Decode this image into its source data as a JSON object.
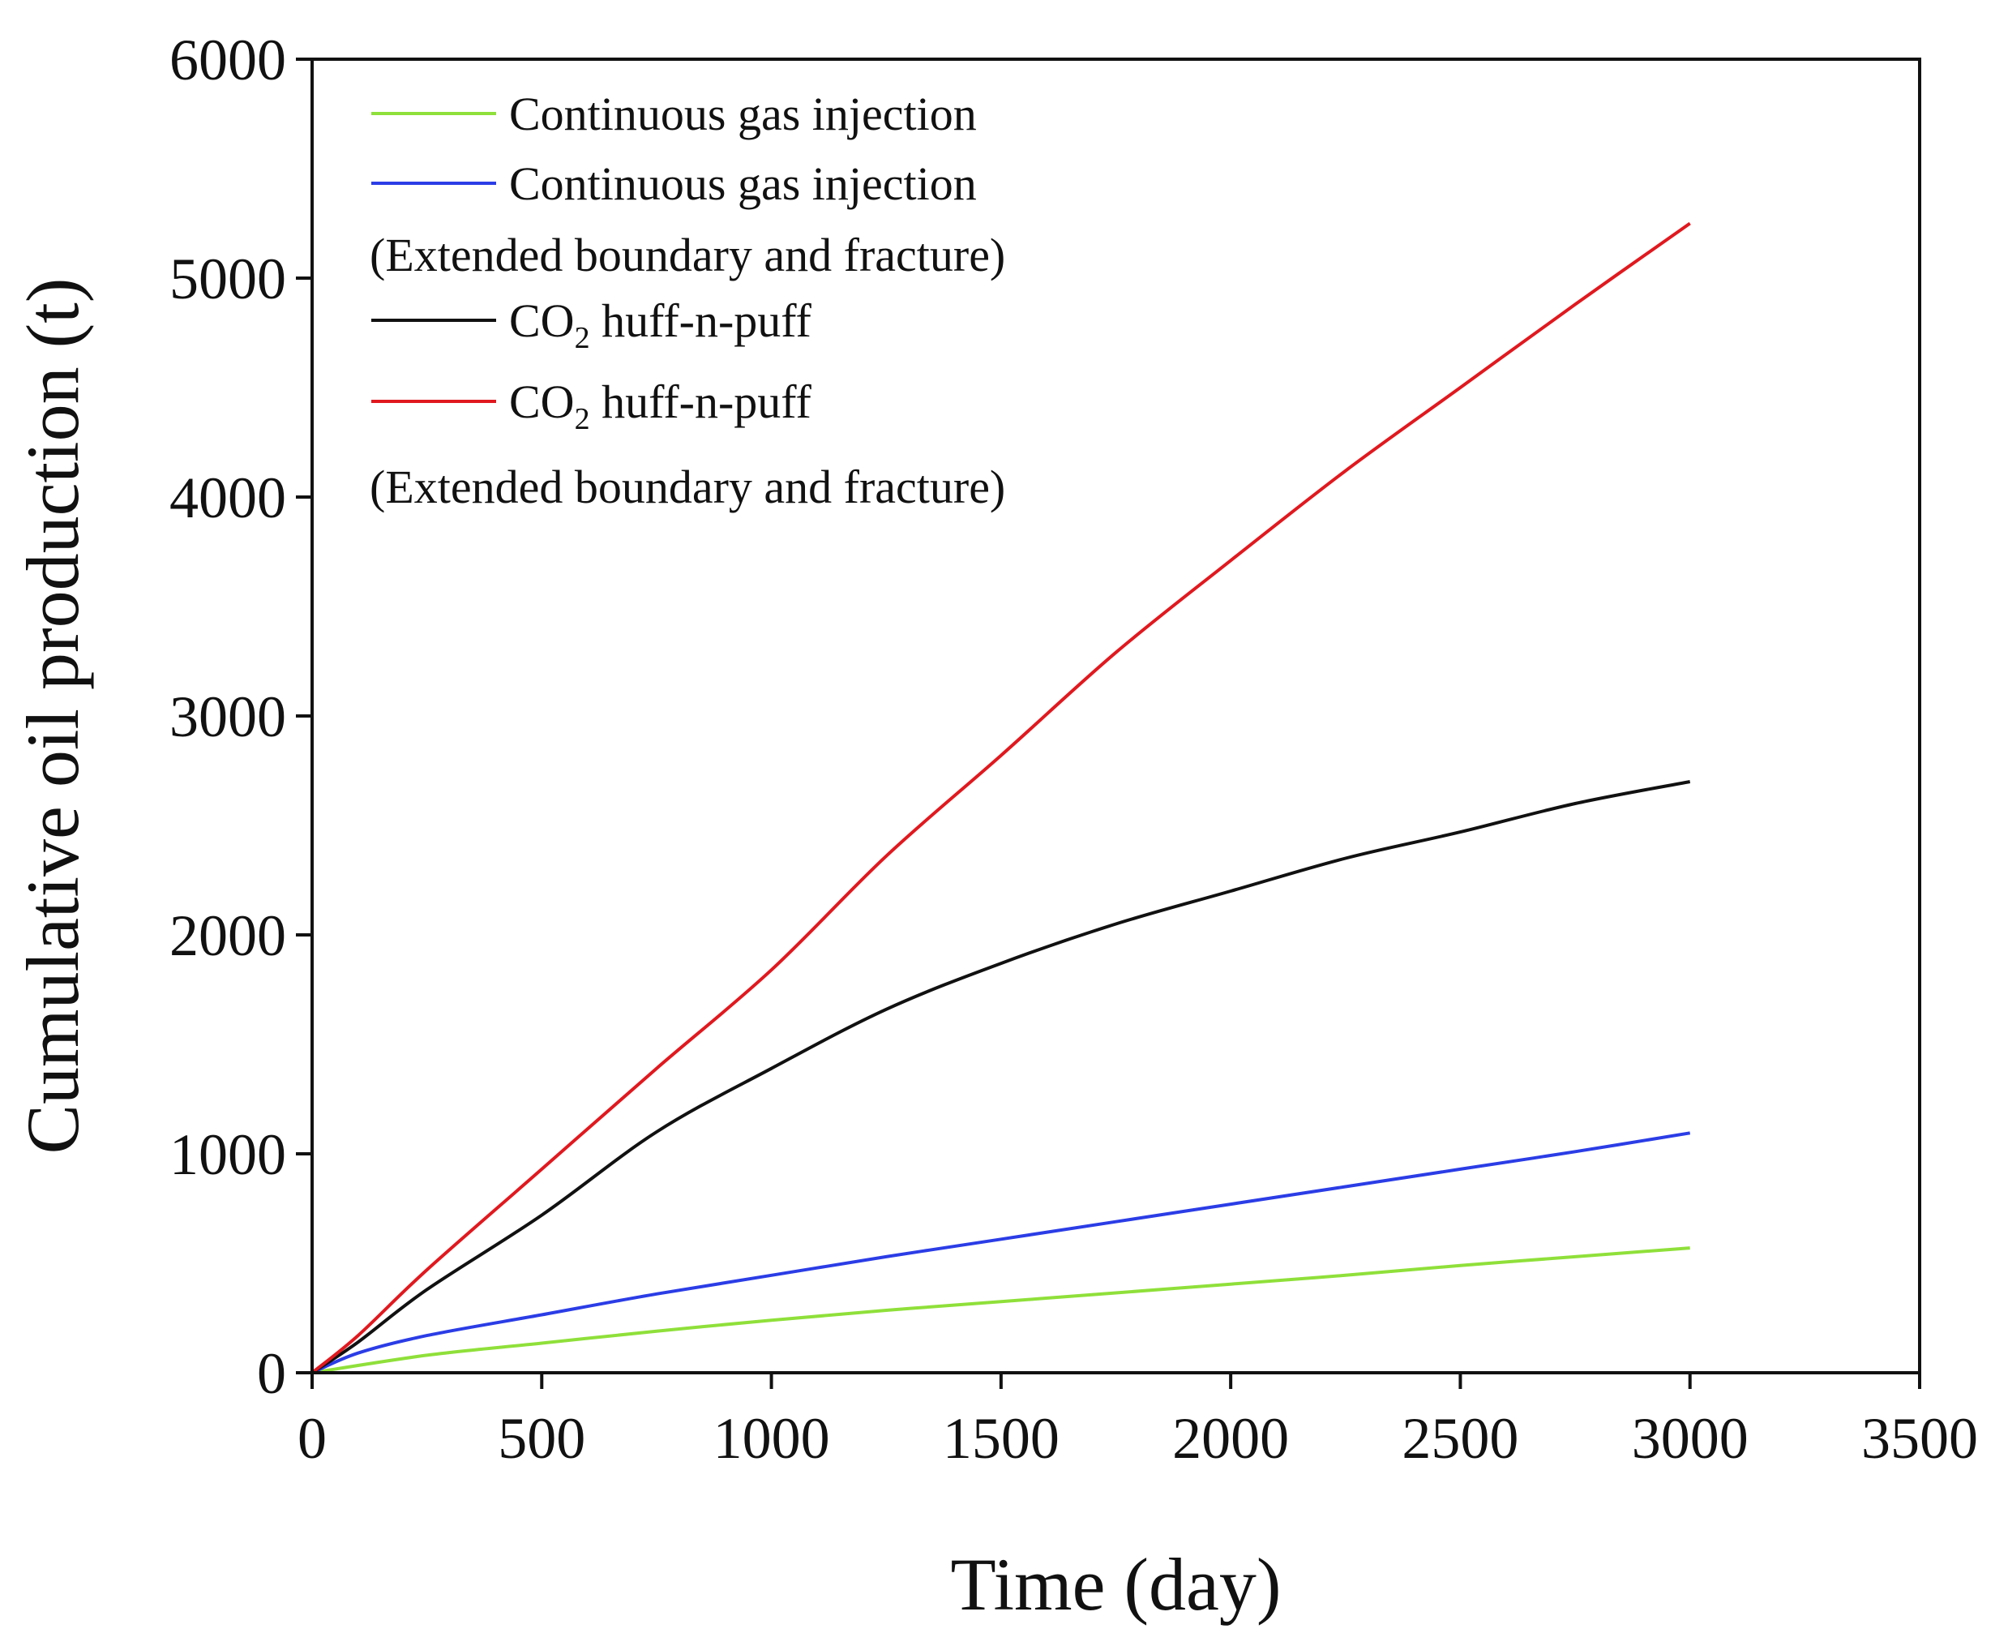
{
  "chart_data": {
    "type": "line",
    "title": "",
    "xlabel": "Time (day)",
    "ylabel": "Cumulative oil production (t)",
    "xlim": [
      0,
      3500
    ],
    "ylim": [
      0,
      6000
    ],
    "xticks": [
      0,
      500,
      1000,
      1500,
      2000,
      2500,
      3000,
      3500
    ],
    "yticks": [
      0,
      1000,
      2000,
      3000,
      4000,
      5000,
      6000
    ],
    "grid": false,
    "legend_position": "top-left",
    "series": [
      {
        "name": "Continuous gas injection",
        "color": "#8fe03a",
        "x": [
          0,
          250,
          500,
          750,
          1000,
          1250,
          1500,
          1750,
          2000,
          2250,
          2500,
          2750,
          3000
        ],
        "y": [
          0,
          80,
          135,
          190,
          240,
          285,
          325,
          365,
          405,
          445,
          490,
          530,
          570
        ]
      },
      {
        "name": "Continuous gas injection",
        "name_line2": "(Extended boundary and fracture)",
        "color": "#2b3de6",
        "x": [
          0,
          100,
          250,
          500,
          750,
          1000,
          1250,
          1500,
          1750,
          2000,
          2250,
          2500,
          2750,
          3000
        ],
        "y": [
          0,
          90,
          170,
          265,
          360,
          445,
          530,
          610,
          690,
          770,
          850,
          930,
          1010,
          1095
        ]
      },
      {
        "name": "CO",
        "name_sub": "2",
        "name_rest": " huff-n-puff",
        "color": "#111111",
        "x": [
          0,
          100,
          250,
          500,
          750,
          1000,
          1250,
          1500,
          1750,
          2000,
          2250,
          2500,
          2750,
          3000
        ],
        "y": [
          0,
          140,
          380,
          720,
          1100,
          1390,
          1660,
          1870,
          2050,
          2200,
          2350,
          2470,
          2600,
          2700
        ]
      },
      {
        "name": "CO",
        "name_sub": "2",
        "name_rest": " huff-n-puff",
        "name_line2": "(Extended boundary and fracture)",
        "color": "#e0191f",
        "x": [
          0,
          100,
          250,
          500,
          750,
          1000,
          1250,
          1500,
          1750,
          2000,
          2250,
          2500,
          2750,
          3000
        ],
        "y": [
          0,
          170,
          470,
          930,
          1390,
          1840,
          2360,
          2820,
          3290,
          3710,
          4120,
          4500,
          4880,
          5250
        ]
      }
    ]
  }
}
